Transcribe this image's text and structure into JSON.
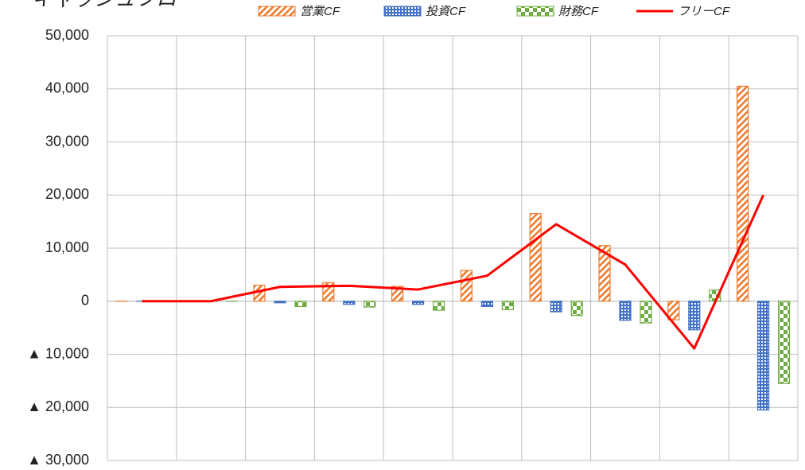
{
  "chart_data": {
    "type": "bar",
    "title": "キャッシュフロー",
    "categories": [
      null,
      null,
      null,
      null,
      null,
      null,
      null,
      null,
      null,
      null
    ],
    "series": [
      {
        "name": "営業CF",
        "type": "bar",
        "color": "#ed7d31",
        "values": [
          0,
          0,
          3000,
          3500,
          2800,
          5800,
          16500,
          10500,
          -3500,
          40500
        ]
      },
      {
        "name": "投資CF",
        "type": "bar",
        "color": "#4472c4",
        "values": [
          0,
          0,
          -300,
          -600,
          -600,
          -1000,
          -2000,
          -3600,
          -5400,
          -20500
        ]
      },
      {
        "name": "財務CF",
        "type": "bar",
        "color": "#70ad47",
        "values": [
          0,
          0,
          -1000,
          -1100,
          -1700,
          -1600,
          -2700,
          -4100,
          2100,
          -15500
        ]
      },
      {
        "name": "フリーCF",
        "type": "line",
        "color": "#ff0000",
        "values": [
          0,
          0,
          2700,
          2900,
          2200,
          4800,
          14500,
          6900,
          -8900,
          20000
        ]
      }
    ],
    "ylim": [
      -30000,
      50000
    ],
    "yticks": [
      {
        "value": -30000,
        "label": "▲ 30,000"
      },
      {
        "value": -20000,
        "label": "▲ 20,000"
      },
      {
        "value": -10000,
        "label": "▲ 10,000"
      },
      0,
      {
        "value": 10000,
        "label": "10,000"
      },
      {
        "value": 20000,
        "label": "20,000"
      },
      {
        "value": 30000,
        "label": "30,000"
      },
      {
        "value": 40000,
        "label": "40,000"
      },
      {
        "value": 50000,
        "label": "50,000"
      }
    ],
    "grid": true
  }
}
